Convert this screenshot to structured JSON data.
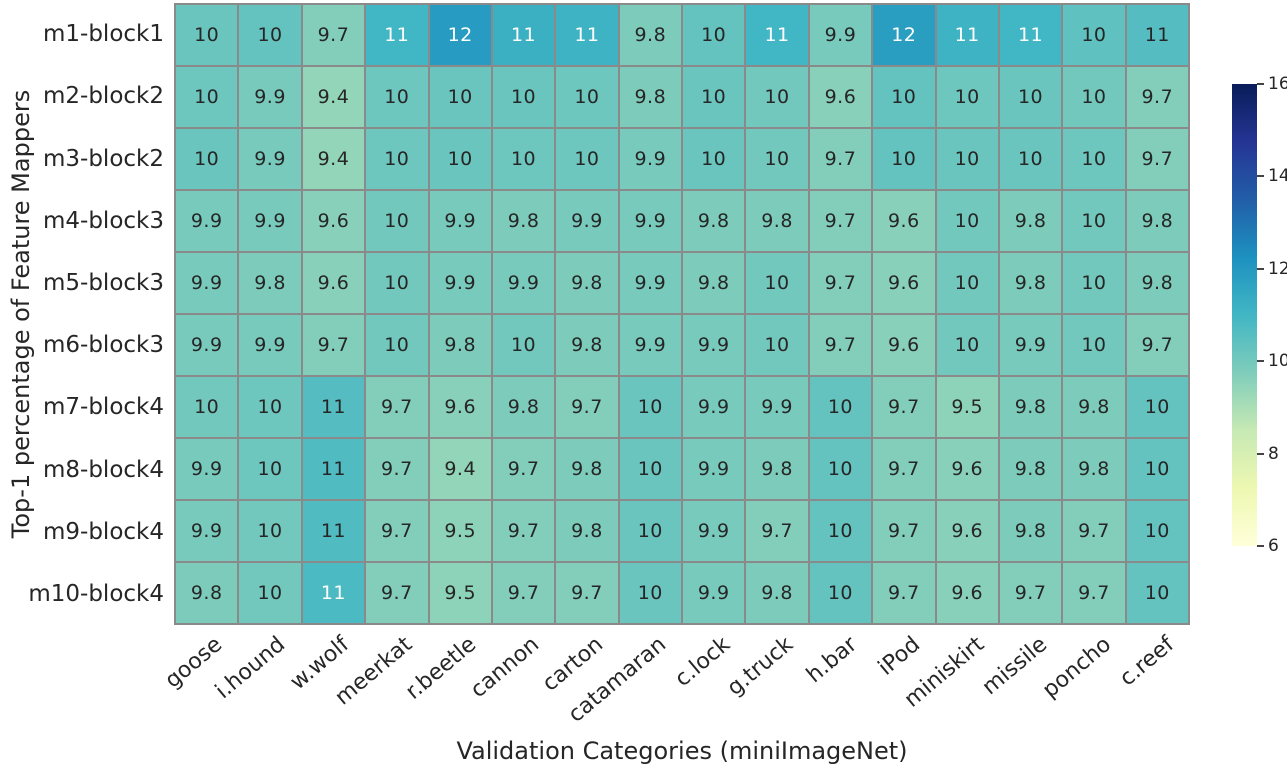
{
  "chart_data": {
    "type": "heatmap",
    "xlabel": "Validation Categories (miniImageNet)",
    "ylabel": "Top-1 percentage of Feature Mappers",
    "x_categories": [
      "goose",
      "i.hound",
      "w.wolf",
      "meerkat",
      "r.beetle",
      "cannon",
      "carton",
      "catamaran",
      "c.lock",
      "g.truck",
      "h.bar",
      "iPod",
      "miniskirt",
      "missile",
      "poncho",
      "c.reef"
    ],
    "y_categories": [
      "m1-block1",
      "m2-block2",
      "m3-block2",
      "m4-block3",
      "m5-block3",
      "m6-block3",
      "m7-block4",
      "m8-block4",
      "m9-block4",
      "m10-block4"
    ],
    "cell_labels": [
      [
        "10",
        "10",
        "9.7",
        "11",
        "12",
        "11",
        "11",
        "9.8",
        "10",
        "11",
        "9.9",
        "12",
        "11",
        "11",
        "10",
        "11"
      ],
      [
        "10",
        "9.9",
        "9.4",
        "10",
        "10",
        "10",
        "10",
        "9.8",
        "10",
        "10",
        "9.6",
        "10",
        "10",
        "10",
        "10",
        "9.7"
      ],
      [
        "10",
        "9.9",
        "9.4",
        "10",
        "10",
        "10",
        "10",
        "9.9",
        "10",
        "10",
        "9.7",
        "10",
        "10",
        "10",
        "10",
        "9.7"
      ],
      [
        "9.9",
        "9.9",
        "9.6",
        "10",
        "9.9",
        "9.8",
        "9.9",
        "9.9",
        "9.8",
        "9.8",
        "9.7",
        "9.6",
        "10",
        "9.8",
        "10",
        "9.8"
      ],
      [
        "9.9",
        "9.8",
        "9.6",
        "10",
        "9.9",
        "9.9",
        "9.8",
        "9.9",
        "9.8",
        "10",
        "9.7",
        "9.6",
        "10",
        "9.8",
        "10",
        "9.8"
      ],
      [
        "9.9",
        "9.9",
        "9.7",
        "10",
        "9.8",
        "10",
        "9.8",
        "9.9",
        "9.9",
        "10",
        "9.7",
        "9.6",
        "10",
        "9.9",
        "10",
        "9.7"
      ],
      [
        "10",
        "10",
        "11",
        "9.7",
        "9.6",
        "9.8",
        "9.7",
        "10",
        "9.9",
        "9.9",
        "10",
        "9.7",
        "9.5",
        "9.8",
        "9.8",
        "10"
      ],
      [
        "9.9",
        "10",
        "11",
        "9.7",
        "9.4",
        "9.7",
        "9.8",
        "10",
        "9.9",
        "9.8",
        "10",
        "9.7",
        "9.6",
        "9.8",
        "9.8",
        "10"
      ],
      [
        "9.9",
        "10",
        "11",
        "9.7",
        "9.5",
        "9.7",
        "9.8",
        "10",
        "9.9",
        "9.7",
        "10",
        "9.7",
        "9.6",
        "9.8",
        "9.7",
        "10"
      ],
      [
        "9.8",
        "10",
        "11",
        "9.7",
        "9.5",
        "9.7",
        "9.7",
        "10",
        "9.9",
        "9.8",
        "10",
        "9.7",
        "9.6",
        "9.7",
        "9.7",
        "10"
      ]
    ],
    "values": [
      [
        10.2,
        10.3,
        9.7,
        11.0,
        11.9,
        11.2,
        11.1,
        9.8,
        10.3,
        11.0,
        9.9,
        11.8,
        11.1,
        11.0,
        10.4,
        10.6
      ],
      [
        10.1,
        9.9,
        9.4,
        10.1,
        10.2,
        10.2,
        10.1,
        9.8,
        10.2,
        10.0,
        9.6,
        10.3,
        10.1,
        10.2,
        10.0,
        9.7
      ],
      [
        10.2,
        9.9,
        9.4,
        10.1,
        10.2,
        10.1,
        10.1,
        9.9,
        10.2,
        10.0,
        9.7,
        10.3,
        10.2,
        10.2,
        10.1,
        9.7
      ],
      [
        9.9,
        9.9,
        9.6,
        10.0,
        9.9,
        9.8,
        9.9,
        9.9,
        9.8,
        9.8,
        9.7,
        9.6,
        10.0,
        9.8,
        10.0,
        9.8
      ],
      [
        9.9,
        9.8,
        9.6,
        10.0,
        9.9,
        9.9,
        9.8,
        9.9,
        9.8,
        10.0,
        9.7,
        9.6,
        10.0,
        9.8,
        10.0,
        9.8
      ],
      [
        9.9,
        9.9,
        9.7,
        10.0,
        9.8,
        10.0,
        9.8,
        9.9,
        9.9,
        10.0,
        9.7,
        9.6,
        10.0,
        9.9,
        10.0,
        9.7
      ],
      [
        10.0,
        10.1,
        10.6,
        9.7,
        9.6,
        9.8,
        9.7,
        10.2,
        9.9,
        9.9,
        10.3,
        9.7,
        9.5,
        9.8,
        9.8,
        10.3
      ],
      [
        9.9,
        10.1,
        10.7,
        9.7,
        9.4,
        9.7,
        9.8,
        10.2,
        9.9,
        9.8,
        10.3,
        9.7,
        9.6,
        9.8,
        9.8,
        10.3
      ],
      [
        9.9,
        10.0,
        10.7,
        9.7,
        9.5,
        9.7,
        9.8,
        10.2,
        9.9,
        9.7,
        10.3,
        9.7,
        9.6,
        9.8,
        9.7,
        10.3
      ],
      [
        9.8,
        10.0,
        10.8,
        9.7,
        9.5,
        9.7,
        9.7,
        10.2,
        9.9,
        9.8,
        10.3,
        9.7,
        9.6,
        9.7,
        9.7,
        10.3
      ]
    ],
    "colormap": "YlGnBu",
    "colormap_stops": [
      [
        "#ffffd9",
        0.0
      ],
      [
        "#edf8b1",
        0.125
      ],
      [
        "#c7e9b4",
        0.25
      ],
      [
        "#7fcdbb",
        0.375
      ],
      [
        "#41b6c4",
        0.5
      ],
      [
        "#1d91c0",
        0.625
      ],
      [
        "#225ea8",
        0.75
      ],
      [
        "#253494",
        0.875
      ],
      [
        "#081d58",
        1.0
      ]
    ],
    "vmin": 6,
    "vmax": 16,
    "colorbar_ticks": [
      6,
      8,
      10,
      12,
      14,
      16
    ],
    "colorbar_position": "right",
    "grid_line_color": "#8a8a8a",
    "annotation_dark_color": "#262626",
    "annotation_light_color": "#ffffff"
  }
}
